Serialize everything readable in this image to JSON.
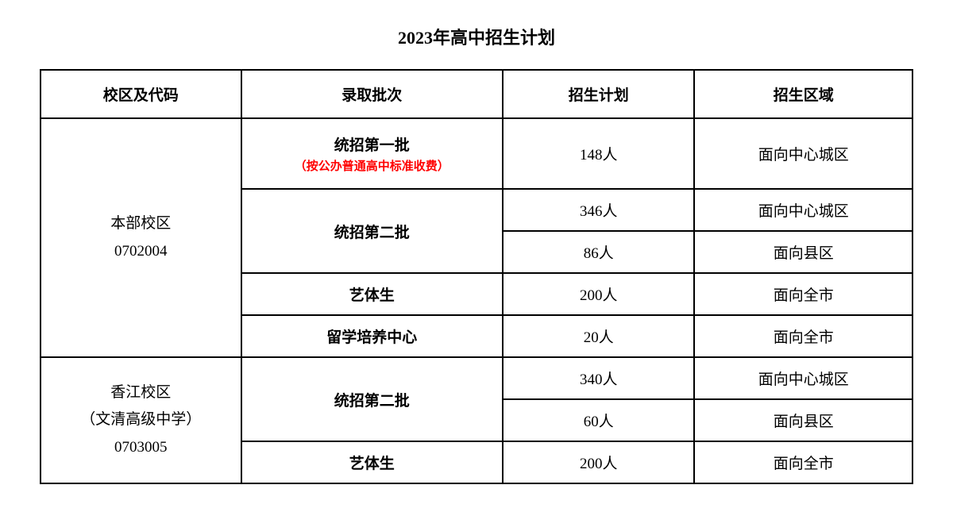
{
  "title": "2023年高中招生计划",
  "headers": {
    "campus": "校区及代码",
    "batch": "录取批次",
    "plan": "招生计划",
    "area": "招生区域"
  },
  "campus1": {
    "name": "本部校区",
    "code": "0702004"
  },
  "campus2": {
    "line1": "香江校区",
    "line2": "（文清高级中学）",
    "line3": "0703005"
  },
  "batch1": {
    "main": "统招第一批",
    "note": "（按公办普通高中标准收费）"
  },
  "batch2": "统招第二批",
  "batch3": "艺体生",
  "batch4": "留学培养中心",
  "rows": {
    "r1": {
      "plan": "148人",
      "area": "面向中心城区"
    },
    "r2": {
      "plan": "346人",
      "area": "面向中心城区"
    },
    "r3": {
      "plan": "86人",
      "area": "面向县区"
    },
    "r4": {
      "plan": "200人",
      "area": "面向全市"
    },
    "r5": {
      "plan": "20人",
      "area": "面向全市"
    },
    "r6": {
      "plan": "340人",
      "area": "面向中心城区"
    },
    "r7": {
      "plan": "60人",
      "area": "面向县区"
    },
    "r8": {
      "plan": "200人",
      "area": "面向全市"
    }
  }
}
